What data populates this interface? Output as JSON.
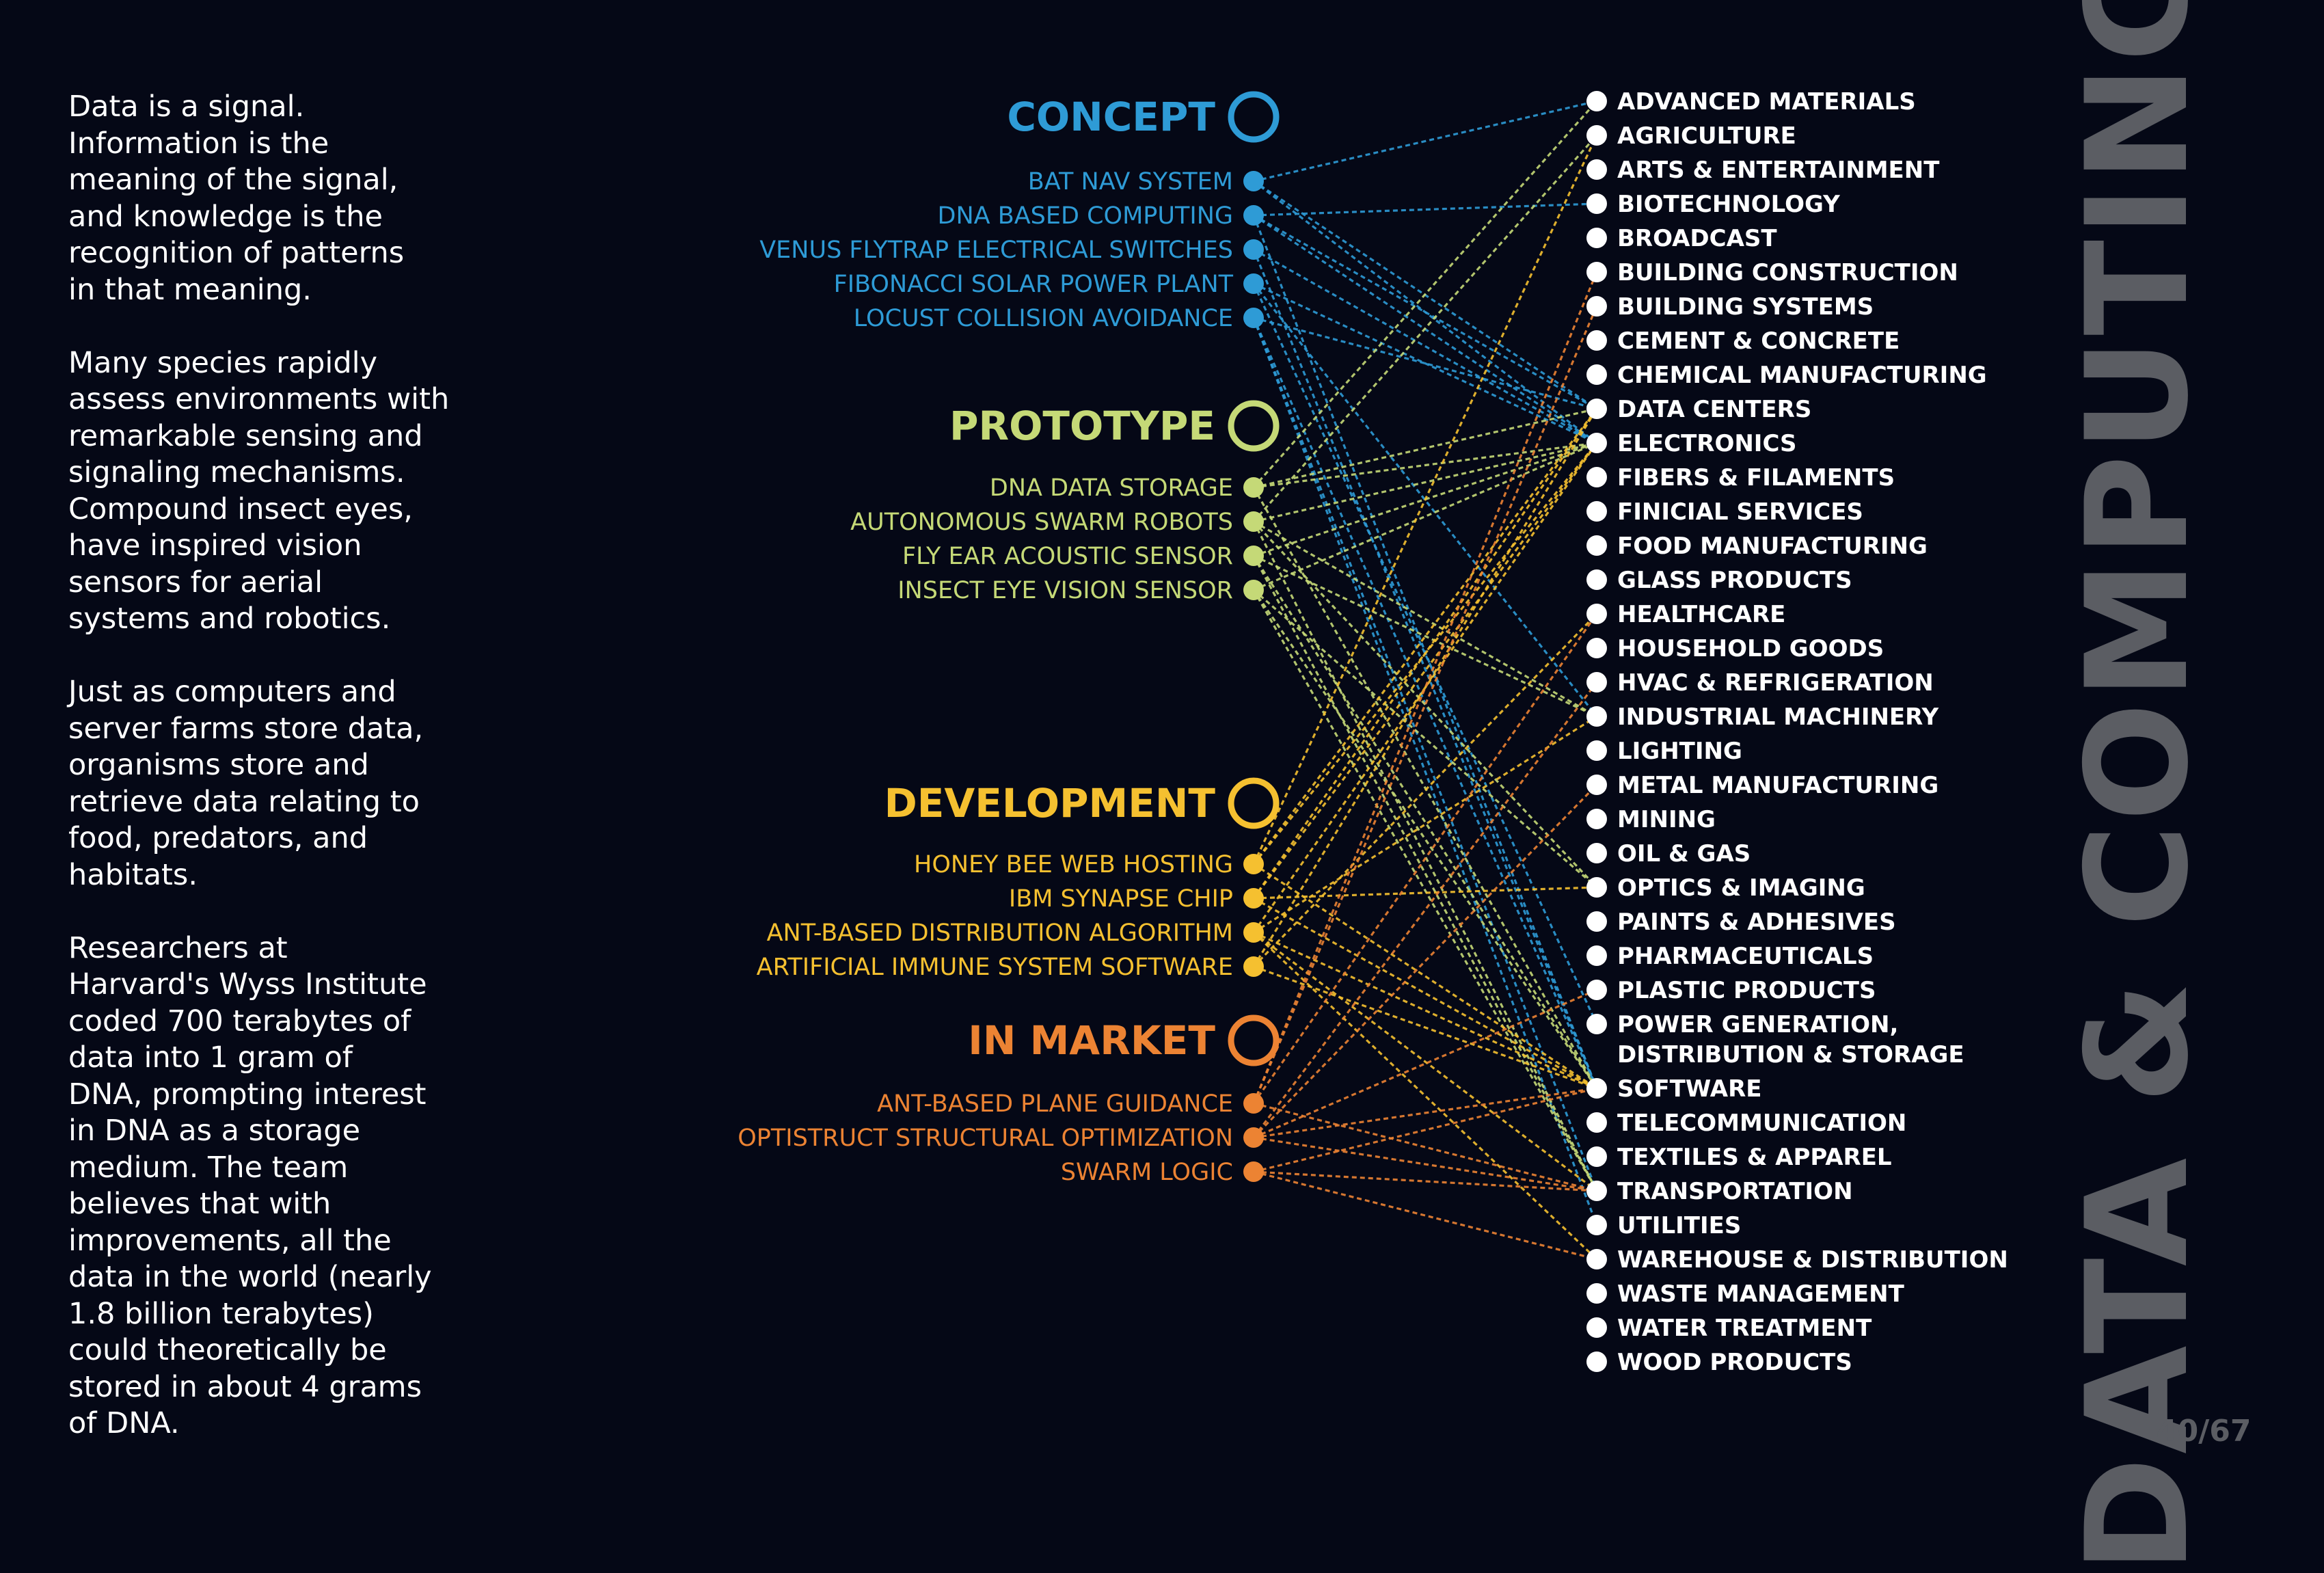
{
  "intro_paragraphs": [
    [
      "Data is a signal.",
      "Information is the",
      "meaning of the signal,",
      "and knowledge is the",
      "recognition of patterns",
      "in that meaning."
    ],
    [
      "Many species rapidly",
      "assess environments with",
      "remarkable sensing and",
      "signaling mechanisms.",
      "Compound insect eyes,",
      "have inspired vision",
      "sensors for aerial",
      "systems and robotics."
    ],
    [
      "Just as computers and",
      "server farms store data,",
      "organisms store and",
      "retrieve data relating to",
      "food, predators, and",
      "habitats."
    ],
    [
      "Researchers at",
      "Harvard's Wyss Institute",
      "coded 700 terabytes of",
      "data into 1 gram of",
      "DNA, prompting interest",
      "in DNA as a storage",
      "medium. The team",
      "believes that with",
      "improvements, all the",
      "data in the world (nearly",
      "1.8 billion terabytes)",
      "could theoretically be",
      "stored in about 4 grams",
      "of DNA."
    ]
  ],
  "side_title": "DATA & COMPUTING",
  "page_number": "40/67",
  "stages": [
    {
      "title": "CONCEPT",
      "color": "#2e9bd6",
      "items": [
        "BAT NAV SYSTEM",
        "DNA BASED COMPUTING",
        "VENUS FLYTRAP ELECTRICAL SWITCHES",
        "FIBONACCI SOLAR POWER PLANT",
        "LOCUST COLLISION AVOIDANCE"
      ]
    },
    {
      "title": "PROTOTYPE",
      "color": "#c5d977",
      "items": [
        "DNA DATA STORAGE",
        "AUTONOMOUS SWARM ROBOTS",
        "FLY EAR ACOUSTIC SENSOR",
        "INSECT EYE VISION SENSOR"
      ]
    },
    {
      "title": "DEVELOPMENT",
      "color": "#f5c030",
      "items": [
        "HONEY BEE WEB HOSTING",
        "IBM SYNAPSE CHIP",
        "ANT-BASED DISTRIBUTION ALGORITHM",
        "ARTIFICIAL IMMUNE SYSTEM SOFTWARE"
      ]
    },
    {
      "title": "IN MARKET",
      "color": "#ec8333",
      "items": [
        "ANT-BASED PLANE GUIDANCE",
        "OPTISTRUCT STRUCTURAL OPTIMIZATION",
        "SWARM LOGIC"
      ]
    }
  ],
  "industries": [
    [
      "ADVANCED MATERIALS"
    ],
    [
      "AGRICULTURE"
    ],
    [
      "ARTS & ENTERTAINMENT"
    ],
    [
      "BIOTECHNOLOGY"
    ],
    [
      "BROADCAST"
    ],
    [
      "BUILDING CONSTRUCTION"
    ],
    [
      "BUILDING SYSTEMS"
    ],
    [
      "CEMENT & CONCRETE"
    ],
    [
      "CHEMICAL MANUFACTURING"
    ],
    [
      "DATA CENTERS"
    ],
    [
      "ELECTRONICS"
    ],
    [
      "FIBERS & FILAMENTS"
    ],
    [
      "FINICIAL SERVICES"
    ],
    [
      "FOOD MANUFACTURING"
    ],
    [
      "GLASS PRODUCTS"
    ],
    [
      "HEALTHCARE"
    ],
    [
      "HOUSEHOLD GOODS"
    ],
    [
      "HVAC & REFRIGERATION"
    ],
    [
      "INDUSTRIAL MACHINERY"
    ],
    [
      "LIGHTING"
    ],
    [
      "METAL MANUFACTURING"
    ],
    [
      "MINING"
    ],
    [
      "OIL & GAS"
    ],
    [
      "OPTICS & IMAGING"
    ],
    [
      "PAINTS & ADHESIVES"
    ],
    [
      "PHARMACEUTICALS"
    ],
    [
      "PLASTIC PRODUCTS"
    ],
    [
      "POWER GENERATION,",
      "DISTRIBUTION & STORAGE"
    ],
    [
      "SOFTWARE"
    ],
    [
      "TELECOMMUNICATION"
    ],
    [
      "TEXTILES & APPAREL"
    ],
    [
      "TRANSPORTATION"
    ],
    [
      "UTILITIES"
    ],
    [
      "WAREHOUSE & DISTRIBUTION"
    ],
    [
      "WASTE MANAGEMENT"
    ],
    [
      "WATER TREATMENT"
    ],
    [
      "WOOD PRODUCTS"
    ]
  ],
  "links": [
    [
      0,
      0,
      [
        0,
        9,
        10
      ]
    ],
    [
      0,
      1,
      [
        3,
        9,
        10,
        28
      ]
    ],
    [
      0,
      2,
      [
        10,
        28
      ]
    ],
    [
      0,
      3,
      [
        10,
        18,
        27
      ]
    ],
    [
      0,
      4,
      [
        9,
        28,
        31,
        32
      ]
    ],
    [
      1,
      0,
      [
        0,
        9,
        10,
        28
      ]
    ],
    [
      1,
      1,
      [
        1,
        10,
        18,
        23,
        31
      ]
    ],
    [
      1,
      2,
      [
        10,
        18,
        28,
        31
      ]
    ],
    [
      1,
      3,
      [
        10,
        23,
        28,
        31
      ]
    ],
    [
      2,
      0,
      [
        1,
        9,
        10,
        28
      ]
    ],
    [
      2,
      1,
      [
        9,
        10,
        23,
        28
      ]
    ],
    [
      2,
      2,
      [
        10,
        18,
        28,
        31,
        33
      ]
    ],
    [
      2,
      3,
      [
        9,
        15,
        28
      ]
    ],
    [
      3,
      0,
      [
        5,
        6,
        15,
        31
      ]
    ],
    [
      3,
      1,
      [
        17,
        20,
        26,
        28,
        31
      ]
    ],
    [
      3,
      2,
      [
        28,
        31,
        33
      ]
    ]
  ]
}
